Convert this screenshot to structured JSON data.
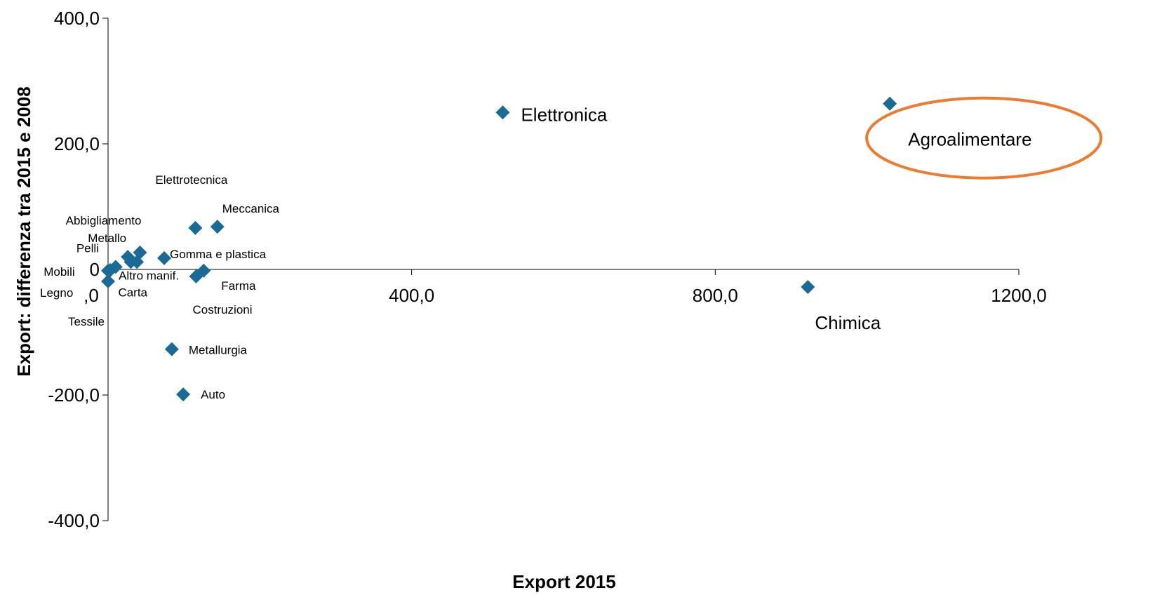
{
  "chart_data": {
    "type": "scatter",
    "xlabel": "Export 2015",
    "ylabel": "Export: differenza tra 2015 e 2008",
    "xlim": [
      0,
      1200
    ],
    "ylim": [
      -400,
      400
    ],
    "x_ticks": [
      {
        "value": 0,
        "label": ",0"
      },
      {
        "value": 400,
        "label": "400,0"
      },
      {
        "value": 800,
        "label": "800,0"
      },
      {
        "value": 1200,
        "label": "1200,0"
      }
    ],
    "y_ticks": [
      {
        "value": 400,
        "label": "400,0"
      },
      {
        "value": 200,
        "label": "200,0"
      },
      {
        "value": 0,
        "label": "0"
      },
      {
        "value": -200,
        "label": "-200,0"
      },
      {
        "value": -400,
        "label": "-400,0"
      }
    ],
    "marker_color": "#1a6a96",
    "highlight_color": "#ee7a30",
    "highlight_label": "Agroalimentare",
    "points": [
      {
        "label": "Agroalimentare",
        "x": 1030,
        "y": 264
      },
      {
        "label": "Elettronica",
        "x": 520,
        "y": 250
      },
      {
        "label": "Chimica",
        "x": 922,
        "y": -28
      },
      {
        "label": "Meccanica",
        "x": 144,
        "y": 68
      },
      {
        "label": "Elettrotecnica",
        "x": 115,
        "y": 66
      },
      {
        "label": "Gomma e plastica",
        "x": 74,
        "y": 18
      },
      {
        "label": "Abbigliamento",
        "x": 42,
        "y": 27
      },
      {
        "label": "Metallo",
        "x": 26,
        "y": 20
      },
      {
        "label": "Altro manif.",
        "x": 38,
        "y": 12
      },
      {
        "label": "Carta",
        "x": 30,
        "y": 12
      },
      {
        "label": "Pelli",
        "x": 10,
        "y": 4
      },
      {
        "label": "Mobili",
        "x": 3,
        "y": -1
      },
      {
        "label": "Legno",
        "x": 0,
        "y": -2
      },
      {
        "label": "Tessile",
        "x": 0,
        "y": -19
      },
      {
        "label": "Farma",
        "x": 126,
        "y": -2
      },
      {
        "label": "Costruzioni",
        "x": 116,
        "y": -11
      },
      {
        "label": "Metallurgia",
        "x": 84,
        "y": -127
      },
      {
        "label": "Auto",
        "x": 99,
        "y": -199
      }
    ]
  }
}
